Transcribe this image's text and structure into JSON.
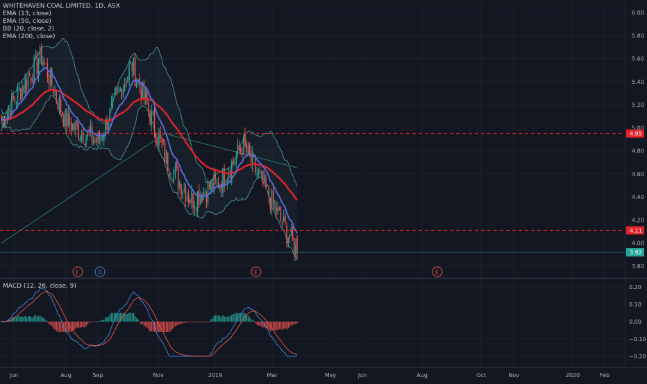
{
  "title": "WHITEHAVEN COAL LIMITED, 1D, ASX",
  "indicators": [
    "EMA (13, close)",
    "EMA (50, close)",
    "BB (20, close, 2)",
    "EMA (200, close)"
  ],
  "macd_label": "MACD (12, 26, close, 9)",
  "colors": {
    "background": "#131722",
    "grid": "#1e222d",
    "up": "#26a69a",
    "down": "#ef5350",
    "ema13": "#5b6bd8",
    "ema50": "#e0232a",
    "bb": "#4a8f8c",
    "ema200": "#2b7a6e",
    "macd_line": "#3f7fd2",
    "signal_line": "#e0553f",
    "level_line": "#e0232a",
    "current_price": "#26a69a"
  },
  "price_axis_ticks": [
    "6.00",
    "5.80",
    "5.60",
    "5.40",
    "5.20",
    "5.00",
    "4.80",
    "4.60",
    "4.40",
    "4.20",
    "4.00",
    "3.80"
  ],
  "macd_axis_ticks": [
    "0.20",
    "0.10",
    "0.00",
    "−0.10",
    "−0.20"
  ],
  "time_axis_ticks": [
    "Jun",
    "Aug",
    "Sep",
    "Nov",
    "2019",
    "Mar",
    "May",
    "Jun",
    "Aug",
    "Oct",
    "Nov",
    "2020",
    "Feb"
  ],
  "price_labels": [
    {
      "text": "4.95",
      "value": 4.95,
      "kind": "level"
    },
    {
      "text": "4.11",
      "value": 4.11,
      "kind": "level"
    },
    {
      "text": "3.92",
      "value": 3.92,
      "kind": "current"
    }
  ],
  "events": [
    {
      "label": "E",
      "type": "earnings"
    },
    {
      "label": "D",
      "type": "dividend"
    },
    {
      "label": "E",
      "type": "earnings"
    },
    {
      "label": "E",
      "type": "earnings"
    }
  ],
  "chart_data": {
    "type": "candlestick",
    "symbol": "WHITEHAVEN COAL LIMITED",
    "interval": "1D",
    "exchange": "ASX",
    "ylim": [
      3.8,
      6.0
    ],
    "level_lines": [
      4.95,
      4.11
    ],
    "current_price": 3.92,
    "close_path": [
      {
        "month": "Jun",
        "close": 5.05
      },
      {
        "month": "Jul",
        "close": 5.62
      },
      {
        "month": "Aug",
        "close": 5.05
      },
      {
        "month": "Sep",
        "close": 4.88
      },
      {
        "month": "Oct",
        "close": 5.55
      },
      {
        "month": "Nov",
        "close": 4.72
      },
      {
        "month": "Dec",
        "close": 4.38
      },
      {
        "month": "Jan",
        "close": 4.55
      },
      {
        "month": "Feb",
        "close": 4.85
      },
      {
        "month": "Mar",
        "close": 3.92
      }
    ],
    "macd": {
      "ylim": [
        -0.22,
        0.22
      ],
      "histogram_range": [
        -0.06,
        0.05
      ],
      "line_range": [
        -0.2,
        0.19
      ]
    }
  }
}
